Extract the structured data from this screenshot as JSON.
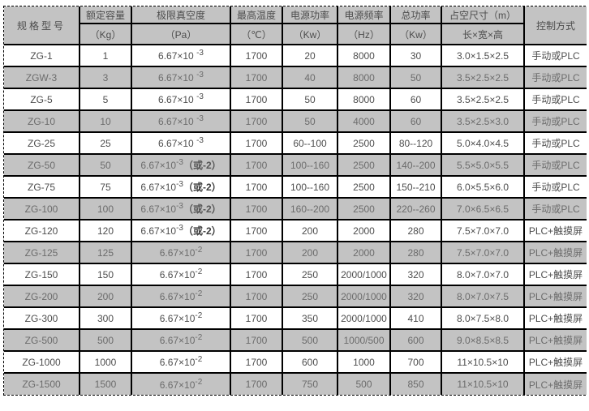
{
  "colors": {
    "row_alt_bg": "#c3c3c3",
    "header_bg": "#c3c3c3",
    "border": "#000000",
    "text": "#4d4d4d"
  },
  "table": {
    "header": {
      "model": "规格型号",
      "control": "控制方式",
      "columns": [
        {
          "title": "额定容量",
          "unit": "（Kg）"
        },
        {
          "title": "极限真空度",
          "unit": "（Pa）"
        },
        {
          "title": "最高温度",
          "unit": "（℃）"
        },
        {
          "title": "电源功率",
          "unit": "（Kw）"
        },
        {
          "title": "电源频率",
          "unit": "（Hz）"
        },
        {
          "title": "总功率",
          "unit": "（Kw）"
        },
        {
          "title": "占空尺寸（m）",
          "unit": "长×宽×高"
        }
      ]
    },
    "rows": [
      {
        "model": "ZG-1",
        "capacity": "1",
        "vacuum": {
          "base": "6.67×10 ",
          "exp": "-3",
          "note": ""
        },
        "temp": "1700",
        "power": "20",
        "freq": "8000",
        "total_power": "30",
        "dims": "3.0×1.5×2.5",
        "control": "手动或PLC"
      },
      {
        "model": "ZGW-3",
        "capacity": "3",
        "vacuum": {
          "base": "6.67×10 ",
          "exp": "-3",
          "note": ""
        },
        "temp": "1700",
        "power": "40",
        "freq": "8000",
        "total_power": "50",
        "dims": "3.5×2.5×2.5",
        "control": "手动或PLC"
      },
      {
        "model": "ZG-5",
        "capacity": "5",
        "vacuum": {
          "base": "6.67×10 ",
          "exp": "-3",
          "note": ""
        },
        "temp": "1700",
        "power": "50",
        "freq": "8000",
        "total_power": "60",
        "dims": "3.5×2.5×2.5",
        "control": "手动或PLC"
      },
      {
        "model": "ZG-10",
        "capacity": "10",
        "vacuum": {
          "base": "6.67×10 ",
          "exp": "-3",
          "note": ""
        },
        "temp": "1700",
        "power": "50",
        "freq": "4000",
        "total_power": "60",
        "dims": "3.5×2.5×3.0",
        "control": "手动或PLC"
      },
      {
        "model": "ZG-25",
        "capacity": "25",
        "vacuum": {
          "base": "6.67×10 ",
          "exp": "-3",
          "note": ""
        },
        "temp": "1700",
        "power": "60--100",
        "freq": "2500",
        "total_power": "80--120",
        "dims": "5.0×4.0×4.5",
        "control": "手动或PLC"
      },
      {
        "model": "ZG-50",
        "capacity": "50",
        "vacuum": {
          "base": "6.67×10",
          "exp": "-3",
          "note": "（或-2）"
        },
        "temp": "1700",
        "power": "100--160",
        "freq": "2500",
        "total_power": "140--200",
        "dims": "5.5×5.0×5.5",
        "control": "手动或PLC"
      },
      {
        "model": "ZG-75",
        "capacity": "75",
        "vacuum": {
          "base": "6.67×10",
          "exp": "-3",
          "note": "（或-2）"
        },
        "temp": "1700",
        "power": "100--160",
        "freq": "2500",
        "total_power": "150--210",
        "dims": "6.0×5.5×6.0",
        "control": "手动或PLC"
      },
      {
        "model": "ZG-100",
        "capacity": "100",
        "vacuum": {
          "base": "6.67×10",
          "exp": "-3",
          "note": "（或-2）"
        },
        "temp": "1700",
        "power": "160--200",
        "freq": "2500",
        "total_power": "220--260",
        "dims": "7.0×6.5×6.5",
        "control": "手动或PLC"
      },
      {
        "model": "ZG-120",
        "capacity": "120",
        "vacuum": {
          "base": "6.67×10",
          "exp": "-3",
          "note": "（或-2）"
        },
        "temp": "1700",
        "power": "200",
        "freq": "2000",
        "total_power": "280",
        "dims": "7.5×7.0×7.0",
        "control": "PLC+触摸屏"
      },
      {
        "model": "ZG-125",
        "capacity": "125",
        "vacuum": {
          "base": "6.67×10",
          "exp": "-2",
          "note": ""
        },
        "temp": "1700",
        "power": "200",
        "freq": "2000",
        "total_power": "280",
        "dims": "7.5×7.0×7.0",
        "control": "PLC+触摸屏"
      },
      {
        "model": "ZG-150",
        "capacity": "150",
        "vacuum": {
          "base": "6.67×10",
          "exp": "-2",
          "note": ""
        },
        "temp": "1700",
        "power": "250",
        "freq": "2000/1000",
        "total_power": "320",
        "dims": "8.0×7.0×7.0",
        "control": "PLC+触摸屏"
      },
      {
        "model": "ZG-200",
        "capacity": "200",
        "vacuum": {
          "base": "6.67×10",
          "exp": "-2",
          "note": ""
        },
        "temp": "1700",
        "power": "250",
        "freq": "2000/1000",
        "total_power": "320",
        "dims": "8.0×7.0×7.5",
        "control": "PLC+触摸屏"
      },
      {
        "model": "ZG-300",
        "capacity": "300",
        "vacuum": {
          "base": "6.67×10",
          "exp": "-2",
          "note": ""
        },
        "temp": "1700",
        "power": "350",
        "freq": "2000/1000",
        "total_power": "410",
        "dims": "8.0×7.5×8.0",
        "control": "PLC+触摸屏"
      },
      {
        "model": "ZG-500",
        "capacity": "500",
        "vacuum": {
          "base": "6.67×10",
          "exp": "-2",
          "note": ""
        },
        "temp": "1700",
        "power": "500",
        "freq": "1000/500",
        "total_power": "600",
        "dims": "9.0×8.5×8.5",
        "control": "PLC+触摸屏"
      },
      {
        "model": "ZG-1000",
        "capacity": "1000",
        "vacuum": {
          "base": "6.67×10",
          "exp": "-2",
          "note": ""
        },
        "temp": "1700",
        "power": "600",
        "freq": "1000",
        "total_power": "700",
        "dims": "11×10.5×10",
        "control": "PLC+触摸屏"
      },
      {
        "model": "ZG-1500",
        "capacity": "1500",
        "vacuum": {
          "base": "6.67×10",
          "exp": "-2",
          "note": ""
        },
        "temp": "1700",
        "power": "750",
        "freq": "500",
        "total_power": "850",
        "dims": "11×10.5×10",
        "control": "PLC+触摸屏"
      }
    ]
  }
}
